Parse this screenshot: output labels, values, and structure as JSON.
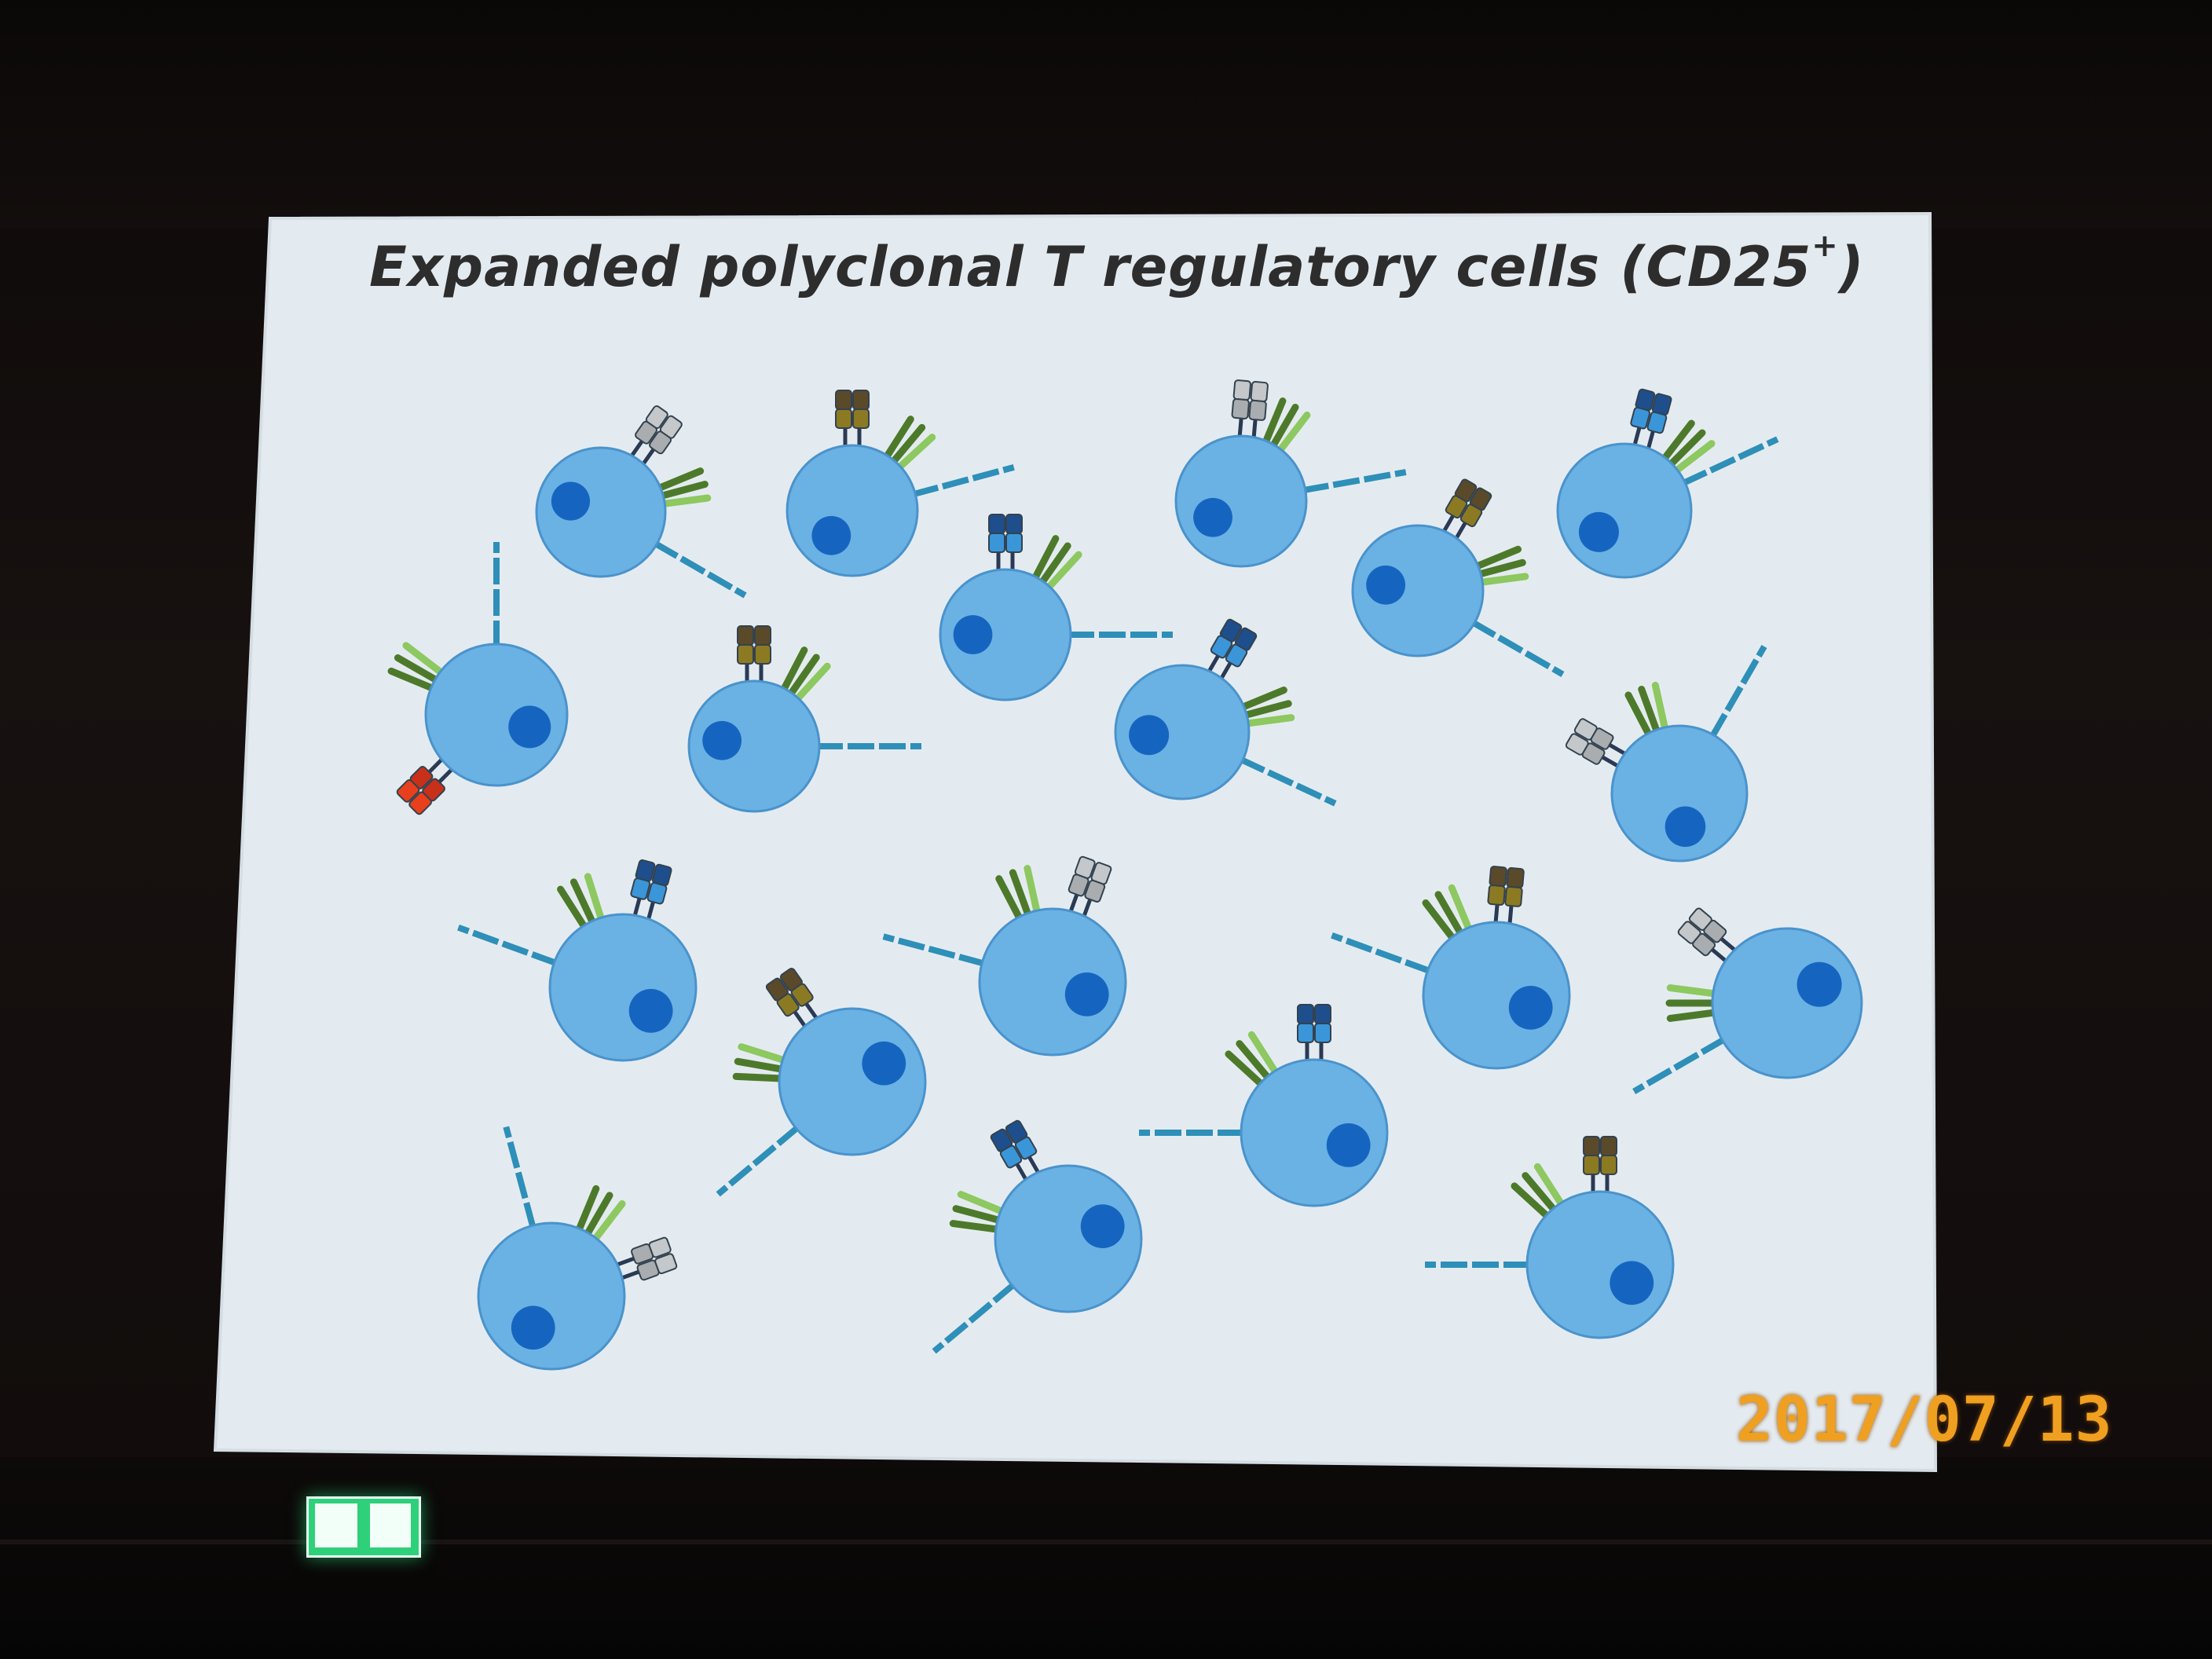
{
  "slide": {
    "title_main": "Expanded polyclonal T regulatory cells (CD25",
    "title_sup": "+",
    "title_close": ")"
  },
  "camera": {
    "date_stamp": "2017/07/13"
  },
  "colors": {
    "slide_background": "#e4ebf0",
    "cell_fill": "#6ab2e4",
    "cell_stroke": "#4a93cc",
    "nucleus": "#1565c0",
    "receptor_gray": "#c4c8ca",
    "receptor_dark_blue": "#1e4f8c",
    "receptor_light_blue": "#3a96d8",
    "receptor_olive": "#8c7a22",
    "receptor_brown": "#5a4a2a",
    "receptor_red": "#e8401c",
    "leaf_green": "#8dc860",
    "leaf_dark_green": "#4d7a2a",
    "chain_teal": "#2e8fb8",
    "date_orange": "#f0a020",
    "exit_sign_green": "#2fd07a"
  },
  "icons": {
    "exit_sign": "emergency-exit-sign-icon"
  }
}
